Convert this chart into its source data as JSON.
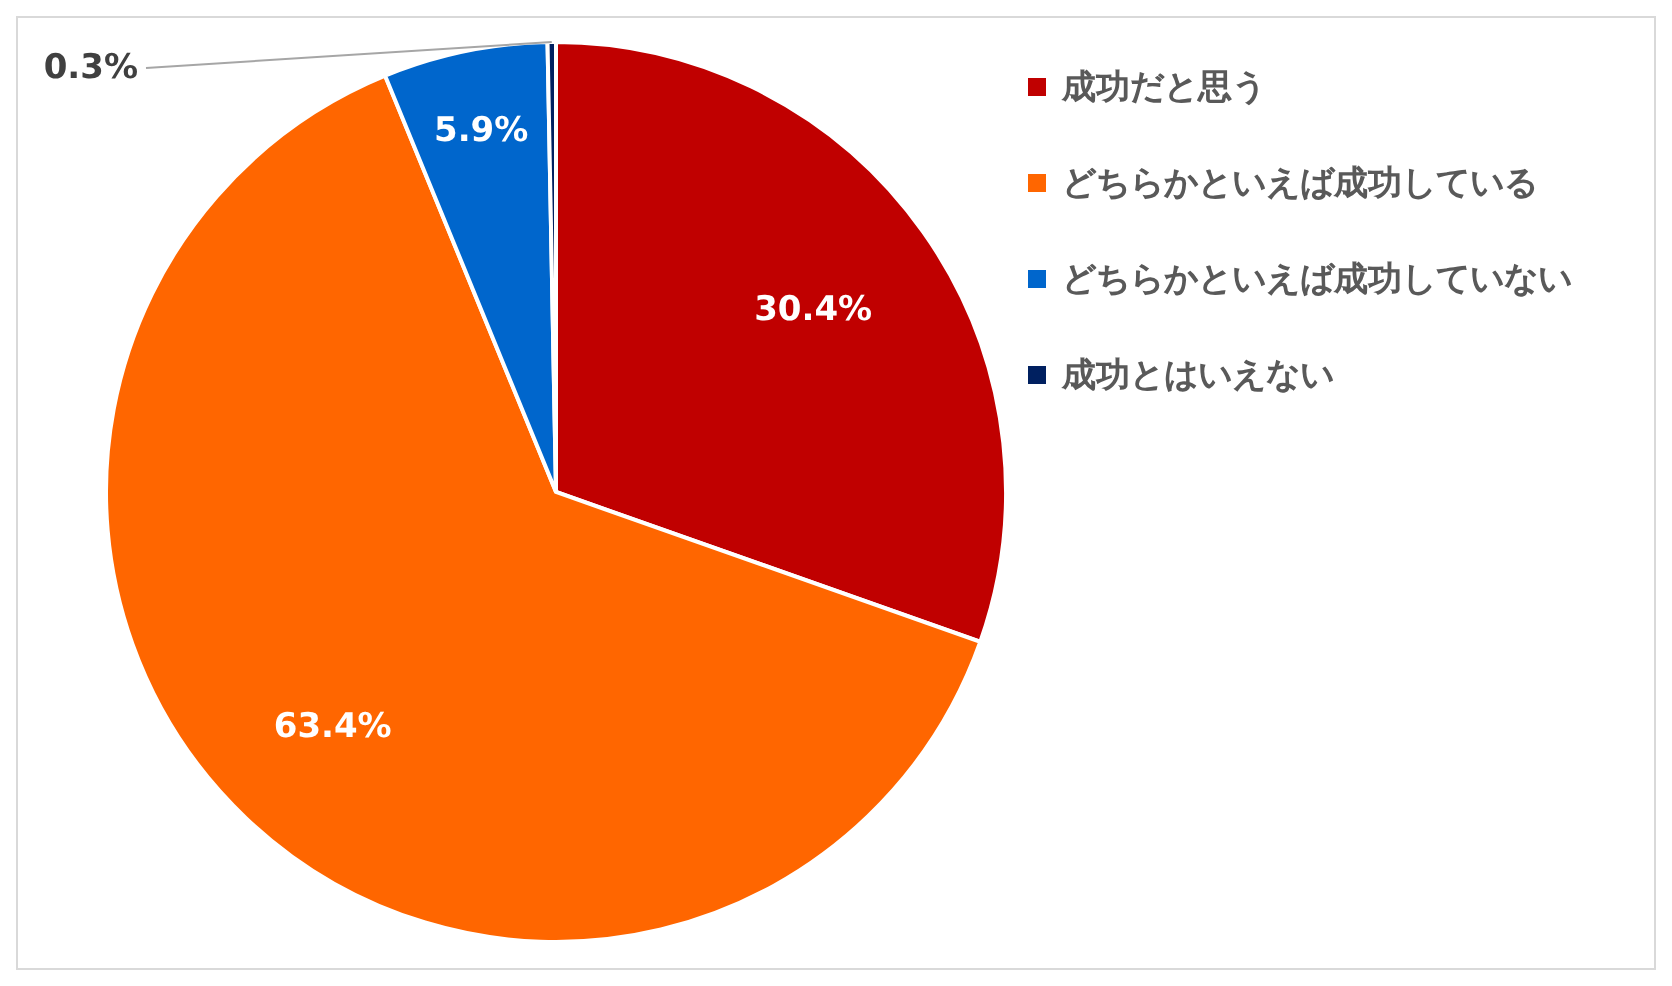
{
  "chart_data": {
    "type": "pie",
    "categories": [
      "成功だと思う",
      "どちらかといえば成功している",
      "どちらかといえば成功していない",
      "成功とはいえない"
    ],
    "values": [
      30.4,
      63.4,
      5.9,
      0.3
    ],
    "value_labels": [
      "30.4%",
      "63.4%",
      "5.9%",
      "0.3%"
    ],
    "colors": [
      "#c00000",
      "#ff6600",
      "#0066cc",
      "#002060"
    ],
    "legend": "top right"
  }
}
